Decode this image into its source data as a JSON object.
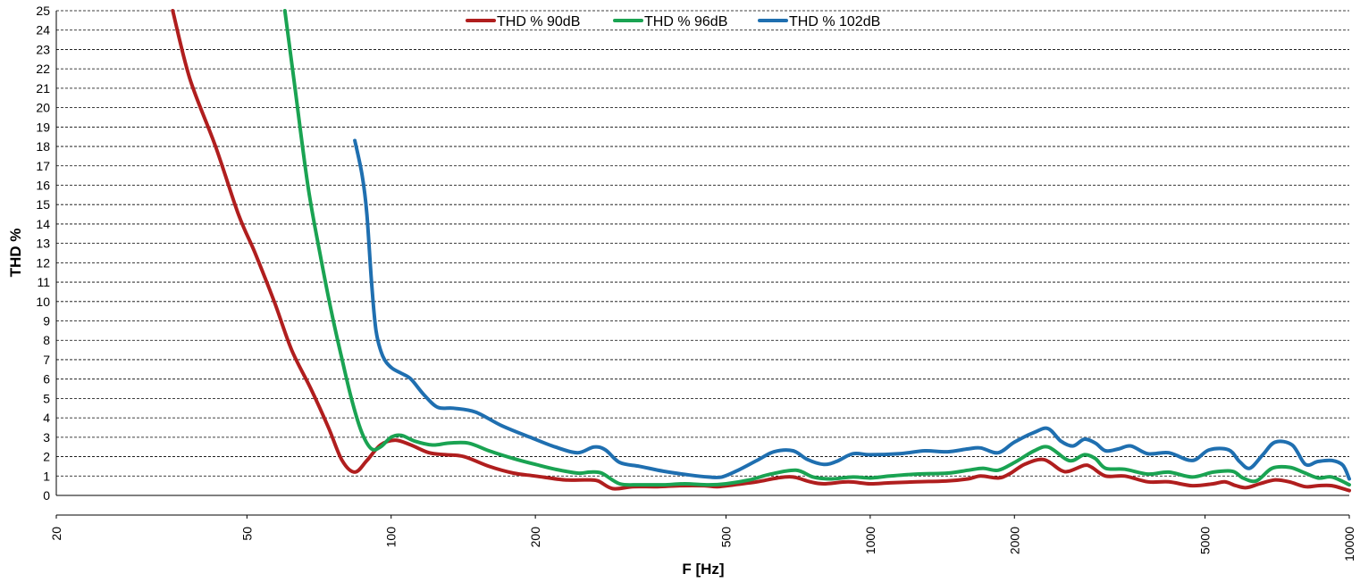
{
  "chart_data": {
    "type": "line",
    "title": "",
    "xlabel": "F [Hz]",
    "ylabel": "THD %",
    "x_scale": "log",
    "xlim": [
      20,
      10000
    ],
    "ylim": [
      0,
      25
    ],
    "x_ticks": [
      "20",
      "50",
      "100",
      "200",
      "500",
      "1000",
      "2000",
      "5000",
      "10000"
    ],
    "y_ticks": [
      "0",
      "1",
      "2",
      "3",
      "4",
      "5",
      "6",
      "7",
      "8",
      "9",
      "10",
      "11",
      "12",
      "13",
      "14",
      "15",
      "16",
      "17",
      "18",
      "19",
      "20",
      "21",
      "22",
      "23",
      "24",
      "25"
    ],
    "grid": "horizontal dashed",
    "legend_position": "top-center",
    "series": [
      {
        "name": "THD % 90dB",
        "color": "#b01e1e",
        "points": [
          [
            35,
            25
          ],
          [
            38,
            21.5
          ],
          [
            43,
            18
          ],
          [
            48,
            14.5
          ],
          [
            52,
            12.5
          ],
          [
            57,
            10
          ],
          [
            62,
            7.5
          ],
          [
            68,
            5.5
          ],
          [
            74,
            3.5
          ],
          [
            79,
            1.8
          ],
          [
            84,
            1.2
          ],
          [
            89,
            1.8
          ],
          [
            95,
            2.6
          ],
          [
            102,
            2.85
          ],
          [
            110,
            2.6
          ],
          [
            120,
            2.2
          ],
          [
            130,
            2.1
          ],
          [
            142,
            2.0
          ],
          [
            160,
            1.5
          ],
          [
            180,
            1.15
          ],
          [
            200,
            1.0
          ],
          [
            230,
            0.8
          ],
          [
            255,
            0.8
          ],
          [
            270,
            0.75
          ],
          [
            290,
            0.35
          ],
          [
            320,
            0.45
          ],
          [
            360,
            0.45
          ],
          [
            400,
            0.5
          ],
          [
            450,
            0.5
          ],
          [
            480,
            0.45
          ],
          [
            520,
            0.55
          ],
          [
            580,
            0.7
          ],
          [
            640,
            0.9
          ],
          [
            690,
            0.95
          ],
          [
            750,
            0.7
          ],
          [
            800,
            0.6
          ],
          [
            900,
            0.7
          ],
          [
            1000,
            0.6
          ],
          [
            1100,
            0.65
          ],
          [
            1250,
            0.7
          ],
          [
            1450,
            0.75
          ],
          [
            1600,
            0.85
          ],
          [
            1700,
            1.0
          ],
          [
            1850,
            0.9
          ],
          [
            1950,
            1.1
          ],
          [
            2100,
            1.6
          ],
          [
            2300,
            1.85
          ],
          [
            2500,
            1.3
          ],
          [
            2600,
            1.25
          ],
          [
            2800,
            1.55
          ],
          [
            2900,
            1.45
          ],
          [
            3100,
            1.0
          ],
          [
            3400,
            1.0
          ],
          [
            3800,
            0.7
          ],
          [
            4200,
            0.7
          ],
          [
            4700,
            0.5
          ],
          [
            5200,
            0.6
          ],
          [
            5500,
            0.7
          ],
          [
            5800,
            0.5
          ],
          [
            6100,
            0.4
          ],
          [
            6500,
            0.6
          ],
          [
            7000,
            0.8
          ],
          [
            7500,
            0.7
          ],
          [
            8100,
            0.45
          ],
          [
            8600,
            0.5
          ],
          [
            9200,
            0.5
          ],
          [
            10000,
            0.25
          ]
        ]
      },
      {
        "name": "THD % 96dB",
        "color": "#1aa352",
        "points": [
          [
            60,
            25
          ],
          [
            63,
            21
          ],
          [
            67,
            16
          ],
          [
            71,
            12.5
          ],
          [
            75,
            9.5
          ],
          [
            79,
            7
          ],
          [
            83,
            4.8
          ],
          [
            87,
            3.2
          ],
          [
            91,
            2.4
          ],
          [
            95,
            2.5
          ],
          [
            100,
            3.0
          ],
          [
            105,
            3.1
          ],
          [
            112,
            2.8
          ],
          [
            122,
            2.6
          ],
          [
            132,
            2.7
          ],
          [
            145,
            2.7
          ],
          [
            160,
            2.3
          ],
          [
            180,
            1.9
          ],
          [
            200,
            1.6
          ],
          [
            220,
            1.35
          ],
          [
            245,
            1.15
          ],
          [
            260,
            1.2
          ],
          [
            275,
            1.15
          ],
          [
            300,
            0.6
          ],
          [
            330,
            0.55
          ],
          [
            370,
            0.55
          ],
          [
            410,
            0.6
          ],
          [
            460,
            0.55
          ],
          [
            500,
            0.6
          ],
          [
            560,
            0.8
          ],
          [
            620,
            1.1
          ],
          [
            700,
            1.3
          ],
          [
            760,
            0.95
          ],
          [
            830,
            0.85
          ],
          [
            920,
            0.95
          ],
          [
            1000,
            0.9
          ],
          [
            1100,
            1.0
          ],
          [
            1250,
            1.1
          ],
          [
            1450,
            1.15
          ],
          [
            1600,
            1.3
          ],
          [
            1720,
            1.4
          ],
          [
            1850,
            1.3
          ],
          [
            2000,
            1.7
          ],
          [
            2200,
            2.3
          ],
          [
            2350,
            2.5
          ],
          [
            2550,
            1.9
          ],
          [
            2650,
            1.8
          ],
          [
            2800,
            2.1
          ],
          [
            2950,
            1.9
          ],
          [
            3100,
            1.4
          ],
          [
            3400,
            1.35
          ],
          [
            3800,
            1.1
          ],
          [
            4200,
            1.2
          ],
          [
            4700,
            0.95
          ],
          [
            5200,
            1.2
          ],
          [
            5700,
            1.25
          ],
          [
            6000,
            0.9
          ],
          [
            6400,
            0.75
          ],
          [
            6900,
            1.4
          ],
          [
            7500,
            1.45
          ],
          [
            8000,
            1.2
          ],
          [
            8600,
            0.9
          ],
          [
            9200,
            0.95
          ],
          [
            10000,
            0.55
          ]
        ]
      },
      {
        "name": "THD % 102dB",
        "color": "#1f6fb0",
        "points": [
          [
            84,
            18.3
          ],
          [
            87,
            16.5
          ],
          [
            89,
            14.5
          ],
          [
            91,
            11
          ],
          [
            93,
            8.5
          ],
          [
            96,
            7.2
          ],
          [
            100,
            6.6
          ],
          [
            105,
            6.3
          ],
          [
            110,
            6.0
          ],
          [
            117,
            5.2
          ],
          [
            125,
            4.55
          ],
          [
            135,
            4.5
          ],
          [
            150,
            4.3
          ],
          [
            170,
            3.6
          ],
          [
            195,
            3.0
          ],
          [
            220,
            2.5
          ],
          [
            245,
            2.2
          ],
          [
            265,
            2.5
          ],
          [
            280,
            2.35
          ],
          [
            300,
            1.7
          ],
          [
            330,
            1.5
          ],
          [
            370,
            1.25
          ],
          [
            420,
            1.05
          ],
          [
            460,
            0.95
          ],
          [
            490,
            0.95
          ],
          [
            530,
            1.3
          ],
          [
            580,
            1.8
          ],
          [
            630,
            2.25
          ],
          [
            690,
            2.3
          ],
          [
            740,
            1.85
          ],
          [
            800,
            1.6
          ],
          [
            850,
            1.75
          ],
          [
            920,
            2.15
          ],
          [
            1000,
            2.1
          ],
          [
            1150,
            2.15
          ],
          [
            1300,
            2.3
          ],
          [
            1450,
            2.25
          ],
          [
            1600,
            2.4
          ],
          [
            1700,
            2.45
          ],
          [
            1850,
            2.2
          ],
          [
            2000,
            2.75
          ],
          [
            2200,
            3.25
          ],
          [
            2350,
            3.45
          ],
          [
            2500,
            2.8
          ],
          [
            2650,
            2.55
          ],
          [
            2800,
            2.9
          ],
          [
            2950,
            2.7
          ],
          [
            3100,
            2.3
          ],
          [
            3300,
            2.4
          ],
          [
            3500,
            2.55
          ],
          [
            3800,
            2.15
          ],
          [
            4200,
            2.2
          ],
          [
            4700,
            1.8
          ],
          [
            5100,
            2.35
          ],
          [
            5600,
            2.35
          ],
          [
            5900,
            1.75
          ],
          [
            6200,
            1.4
          ],
          [
            6600,
            2.1
          ],
          [
            7000,
            2.75
          ],
          [
            7600,
            2.6
          ],
          [
            8100,
            1.6
          ],
          [
            8600,
            1.75
          ],
          [
            9200,
            1.8
          ],
          [
            9700,
            1.55
          ],
          [
            10000,
            0.85
          ]
        ]
      }
    ]
  }
}
